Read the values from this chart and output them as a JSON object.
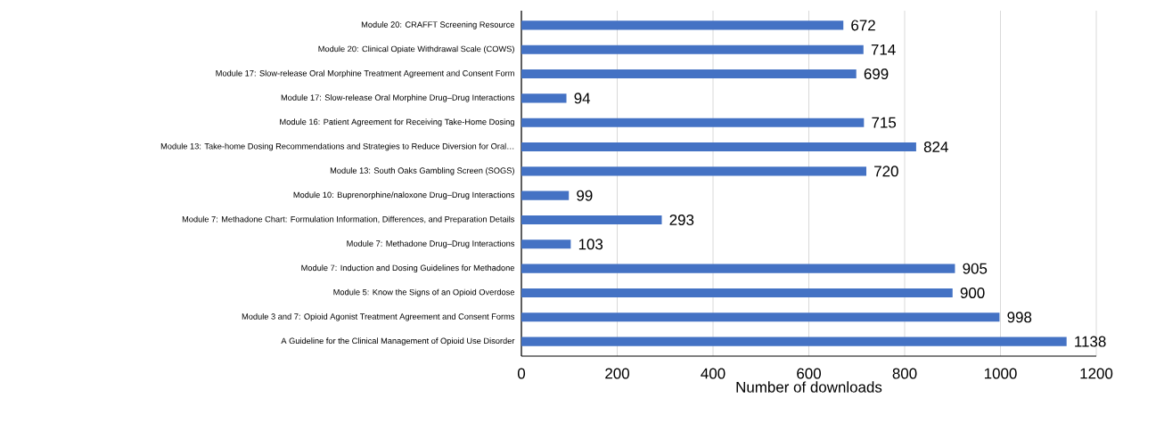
{
  "chart_data": {
    "type": "bar",
    "orientation": "horizontal",
    "xlabel": "Number of downloads",
    "categories": [
      "Module 20: CRAFFT Screening Resource",
      "Module 20: Clinical Opiate Withdrawal Scale (COWS)",
      "Module 17: Slow-release Oral Morphine Treatment Agreement and Consent Form",
      "Module 17: Slow-release Oral Morphine Drug–Drug Interactions",
      "Module 16: Patient Agreement for Receiving Take-Home Dosing",
      "Module 13: Take-home Dosing Recommendations and Strategies to Reduce Diversion for Oral…",
      "Module 13: South Oaks Gambling Screen (SOGS)",
      "Module 10: Buprenorphine/naloxone Drug–Drug Interactions",
      "Module 7: Methadone Chart: Formulation Information, Differences, and Preparation Details",
      "Module 7: Methadone Drug–Drug Interactions",
      "Module 7:  Induction and Dosing Guidelines for Methadone",
      "Module 5: Know the Signs of an Opioid Overdose",
      "Module 3 and 7: Opioid Agonist Treatment Agreement and Consent Forms",
      "A Guideline for the Clinical Management of Opioid Use Disorder"
    ],
    "values": [
      672,
      714,
      699,
      94,
      715,
      824,
      720,
      99,
      293,
      103,
      905,
      900,
      998,
      1138
    ],
    "color": "#4472c4",
    "data_labels": true,
    "grid": "x",
    "xlim": [
      0,
      1200
    ],
    "xticks": [
      0,
      200,
      400,
      600,
      800,
      1000,
      1200
    ]
  }
}
